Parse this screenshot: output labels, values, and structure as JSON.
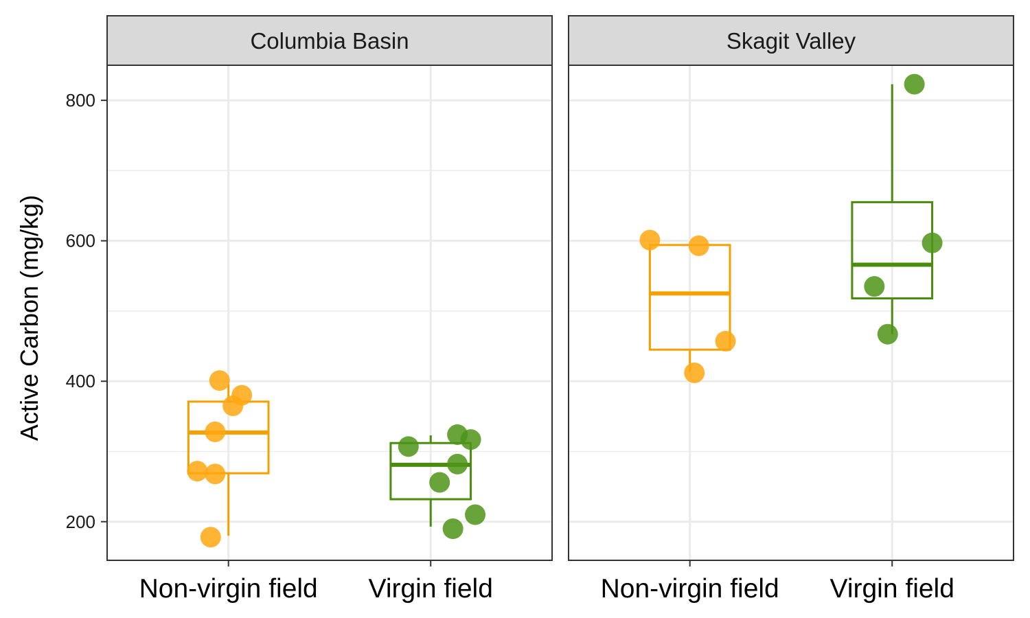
{
  "chart_data": {
    "type": "box",
    "ylabel": "Active Carbon (mg/kg)",
    "xlabel": "",
    "ylim": [
      145,
      850
    ],
    "yticks": [
      200,
      400,
      600,
      800
    ],
    "yminor": [
      300,
      500,
      700
    ],
    "categories": [
      "Non-virgin field",
      "Virgin field"
    ],
    "colors": {
      "Non-virgin field": "#F5A000",
      "Virgin field": "#4A8C0C"
    },
    "point_colors": {
      "Non-virgin field": "#FFA70F",
      "Virgin field": "#4E9418"
    },
    "grid": true,
    "legend": "none",
    "panels": [
      {
        "title": "Columbia Basin",
        "groups": [
          {
            "category": "Non-virgin field",
            "box": {
              "min": 180,
              "q1": 269,
              "median": 327,
              "q3": 371,
              "max": 396
            },
            "points": [
              {
                "jitter": -0.02,
                "y": 401
              },
              {
                "jitter": 0.03,
                "y": 380
              },
              {
                "jitter": 0.01,
                "y": 365
              },
              {
                "jitter": -0.03,
                "y": 328
              },
              {
                "jitter": -0.07,
                "y": 272
              },
              {
                "jitter": -0.03,
                "y": 268
              },
              {
                "jitter": -0.04,
                "y": 178
              }
            ]
          },
          {
            "category": "Virgin field",
            "box": {
              "min": 193,
              "q1": 232,
              "median": 281,
              "q3": 312,
              "max": 323
            },
            "points": [
              {
                "jitter": 0.06,
                "y": 324
              },
              {
                "jitter": 0.09,
                "y": 317
              },
              {
                "jitter": -0.05,
                "y": 307
              },
              {
                "jitter": 0.06,
                "y": 282
              },
              {
                "jitter": 0.02,
                "y": 256
              },
              {
                "jitter": 0.1,
                "y": 210
              },
              {
                "jitter": 0.05,
                "y": 190
              }
            ]
          }
        ]
      },
      {
        "title": "Skagit Valley",
        "groups": [
          {
            "category": "Non-virgin field",
            "box": {
              "min": 413,
              "q1": 445,
              "median": 525,
              "q3": 594,
              "max": 594
            },
            "points": [
              {
                "jitter": -0.09,
                "y": 601
              },
              {
                "jitter": 0.02,
                "y": 593
              },
              {
                "jitter": 0.08,
                "y": 457
              },
              {
                "jitter": 0.01,
                "y": 412
              }
            ]
          },
          {
            "category": "Virgin field",
            "box": {
              "min": 467,
              "q1": 518,
              "median": 566,
              "q3": 655,
              "max": 823
            },
            "points": [
              {
                "jitter": 0.05,
                "y": 823
              },
              {
                "jitter": 0.09,
                "y": 597
              },
              {
                "jitter": -0.04,
                "y": 535
              },
              {
                "jitter": -0.01,
                "y": 467
              }
            ]
          }
        ]
      }
    ]
  }
}
